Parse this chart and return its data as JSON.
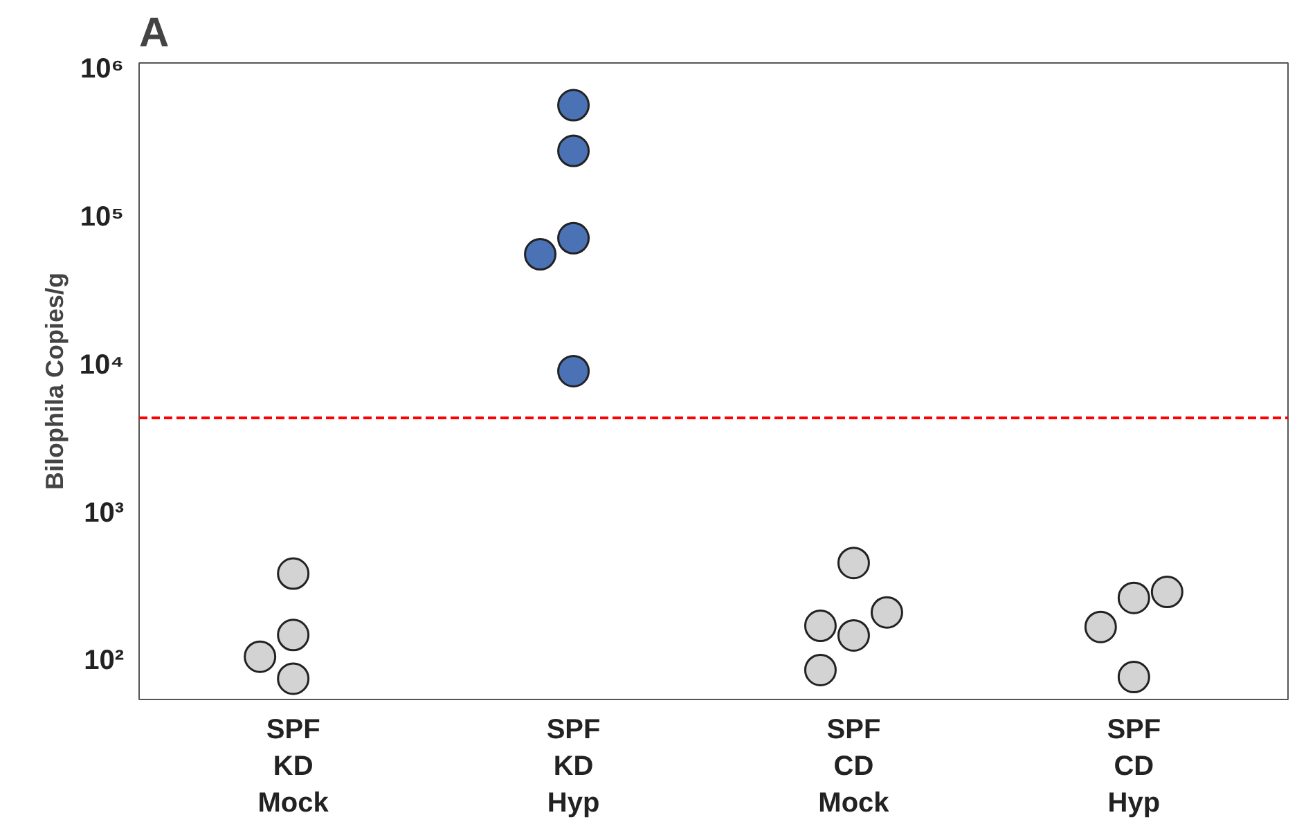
{
  "chart_data": {
    "type": "scatter",
    "title": "A",
    "ylabel": "Bilophila Copies/g",
    "categories": [
      "SPF\nKD\nMock",
      "SPF\nKD\nHyp",
      "SPF\nCD\nMock",
      "SPF\nCD\nHyp"
    ],
    "series": [
      {
        "values": [
          390,
          570000,
          460,
          267
        ],
        "colors": [
          "#d3d3d3",
          "#4a72b4",
          "#d3d3d3",
          "#d3d3d3"
        ]
      },
      {
        "values": [
          76,
          280000,
          149,
          78
        ],
        "colors": [
          "#d3d3d3",
          "#4a72b4",
          "#d3d3d3",
          "#d3d3d3"
        ]
      },
      {
        "values": [
          107,
          72000,
          87,
          170
        ],
        "colors": [
          "#d3d3d3",
          "#4a72b4",
          "#d3d3d3",
          "#d3d3d3"
        ]
      },
      {
        "values": [
          150,
          56000,
          173,
          293
        ],
        "colors": [
          "#d3d3d3",
          "#4a72b4",
          "#d3d3d3",
          "#d3d3d3"
        ]
      },
      {
        "values": [
          null,
          9100,
          213,
          null
        ],
        "colors": [
          "#d3d3d3",
          "#4a72b4",
          "#d3d3d3",
          "#d3d3d3"
        ]
      }
    ],
    "log": "y",
    "ylim": [
      55,
      1100000
    ],
    "yticks": [
      {
        "value": 100,
        "label": "10²"
      },
      {
        "value": 1000,
        "label": "10³"
      },
      {
        "value": 10000,
        "label": "10⁴"
      },
      {
        "value": 100000,
        "label": "10⁵"
      },
      {
        "value": 1000000,
        "label": "10⁶"
      }
    ],
    "ref_lines": [
      {
        "axis": "y",
        "value": 4400,
        "color": "#ff0000",
        "line_style": "dashed"
      }
    ],
    "marker": "circle",
    "grid": false
  }
}
